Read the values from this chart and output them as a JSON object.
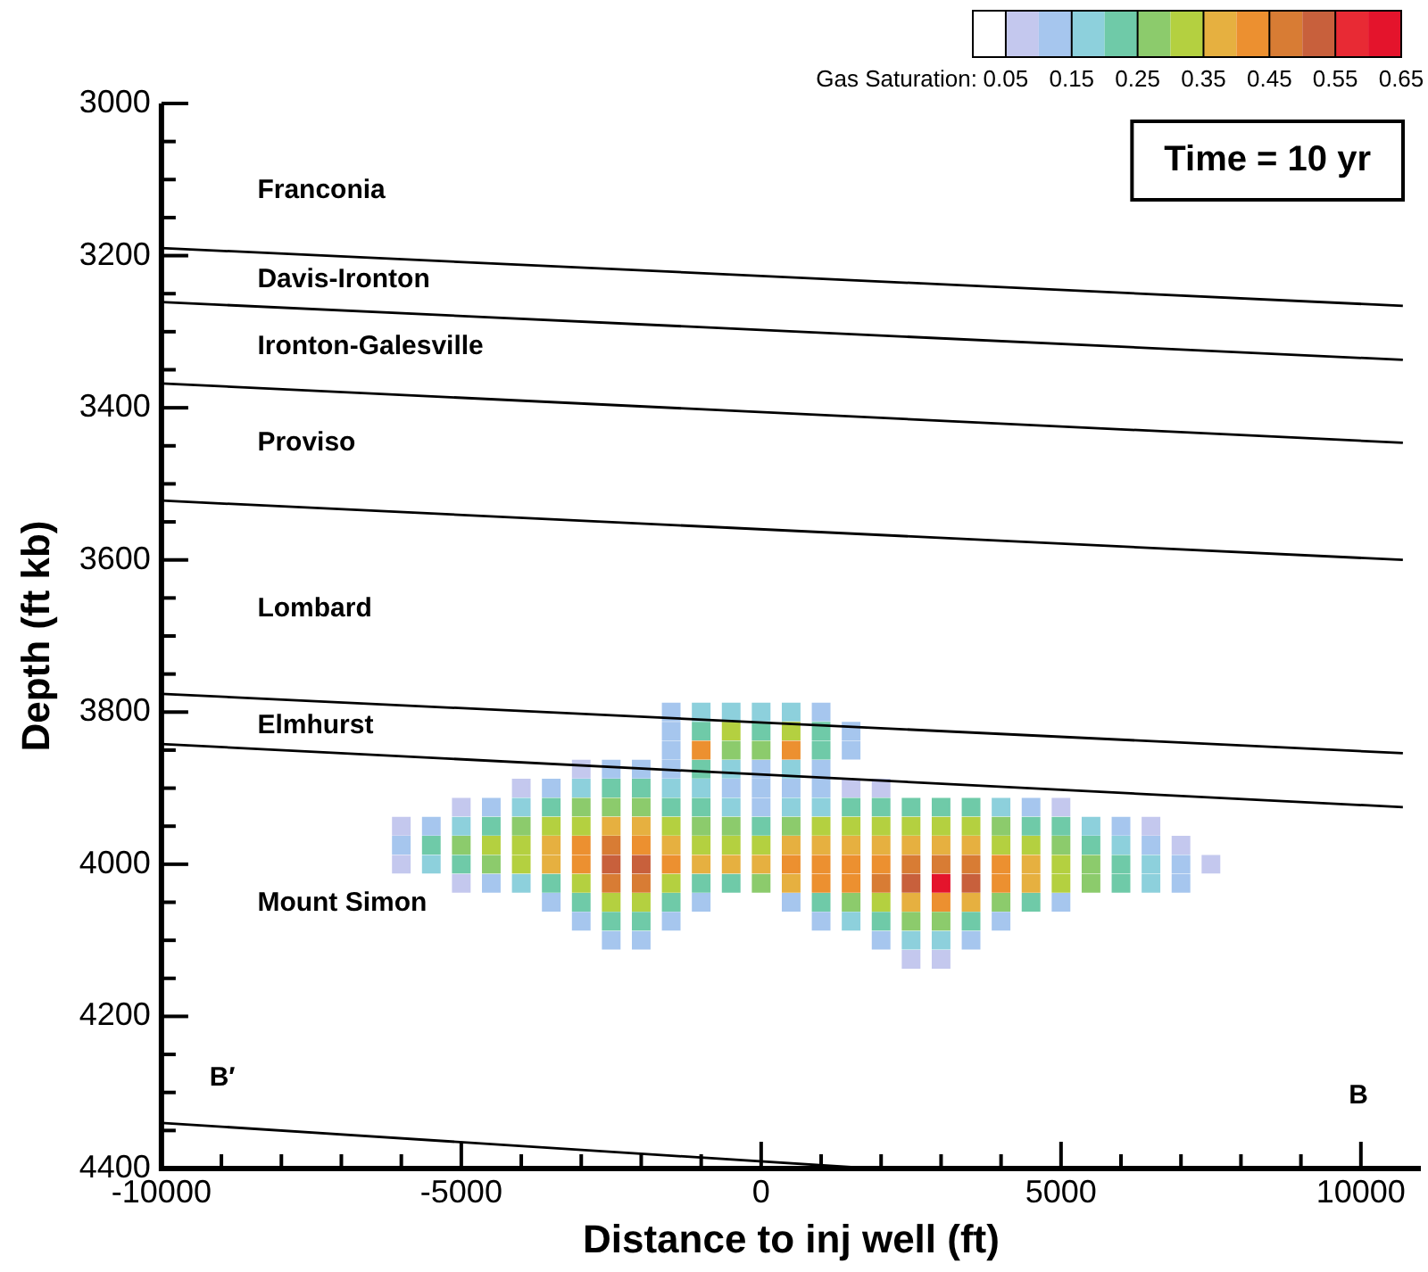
{
  "chart_data": {
    "type": "scatter",
    "xlabel": "Distance to inj well (ft)",
    "ylabel": "Depth (ft kb)",
    "clabel": "Gas Saturation:",
    "clim": [
      0,
      0.65
    ],
    "cticks": [
      0.05,
      0.15,
      0.25,
      0.35,
      0.45,
      0.55,
      0.65
    ],
    "xlim": [
      -10000,
      11000
    ],
    "xticks": [
      -10000,
      {
        "value": -9000,
        "label": null
      },
      {
        "value": -8000,
        "label": null
      },
      {
        "value": -7000,
        "label": null
      },
      {
        "value": -6000,
        "label": null
      },
      -5000,
      {
        "value": -4000,
        "label": null
      },
      {
        "value": -3000,
        "label": null
      },
      {
        "value": -2000,
        "label": null
      },
      {
        "value": -1000,
        "label": null
      },
      0,
      {
        "value": 1000,
        "label": null
      },
      {
        "value": 2000,
        "label": null
      },
      {
        "value": 3000,
        "label": null
      },
      {
        "value": 4000,
        "label": null
      },
      5000,
      {
        "value": 6000,
        "label": null
      },
      {
        "value": 7000,
        "label": null
      },
      {
        "value": 8000,
        "label": null
      },
      {
        "value": 9000,
        "label": null
      },
      10000
    ],
    "ylim": [
      4400,
      3000
    ],
    "yticks": [
      3000,
      {
        "value": 3050,
        "label": null
      },
      {
        "value": 3100,
        "label": null
      },
      {
        "value": 3150,
        "label": null
      },
      3200,
      {
        "value": 3250,
        "label": null
      },
      {
        "value": 3300,
        "label": null
      },
      {
        "value": 3350,
        "label": null
      },
      3400,
      {
        "value": 3450,
        "label": null
      },
      {
        "value": 3500,
        "label": null
      },
      {
        "value": 3550,
        "label": null
      },
      3600,
      {
        "value": 3650,
        "label": null
      },
      {
        "value": 3700,
        "label": null
      },
      {
        "value": 3750,
        "label": null
      },
      3800,
      {
        "value": 3850,
        "label": null
      },
      {
        "value": 3900,
        "label": null
      },
      {
        "value": 3950,
        "label": null
      },
      4000,
      {
        "value": 4050,
        "label": null
      },
      {
        "value": 4100,
        "label": null
      },
      {
        "value": 4150,
        "label": null
      },
      4200,
      {
        "value": 4250,
        "label": null
      },
      {
        "value": 4300,
        "label": null
      },
      {
        "value": 4350,
        "label": null
      },
      4400
    ],
    "grid": false,
    "legend": false,
    "series": [
      {
        "marker": "square",
        "x": [
          -1500,
          -1000,
          -500,
          0,
          500,
          1000
        ],
        "values": [
          3800,
          3800,
          3800,
          3800,
          3800,
          3800
        ],
        "cvalues": [
          0.1,
          0.15,
          0.15,
          0.15,
          0.15,
          0.1
        ],
        "colors": [
          "#a6c6ee",
          "#8dd0dc",
          "#8dd0dc",
          "#8dd0dc",
          "#8dd0dc",
          "#a6c6ee"
        ]
      },
      {
        "marker": "square",
        "x": [
          -1500,
          -1000,
          -500,
          0,
          500,
          1000,
          1500
        ],
        "values": [
          3825,
          3825,
          3825,
          3825,
          3825,
          3825,
          3825
        ],
        "cvalues": [
          0.1,
          0.2,
          0.3,
          0.2,
          0.3,
          0.2,
          0.1
        ],
        "colors": [
          "#a6c6ee",
          "#6fcaa8",
          "#b4d040",
          "#6fcaa8",
          "#b4d040",
          "#6fcaa8",
          "#a6c6ee"
        ]
      },
      {
        "marker": "square",
        "x": [
          -1500,
          -1000,
          -500,
          0,
          500,
          1000,
          1500
        ],
        "values": [
          3850,
          3850,
          3850,
          3850,
          3850,
          3850,
          3850
        ],
        "cvalues": [
          0.1,
          0.4,
          0.25,
          0.25,
          0.4,
          0.2,
          0.1
        ],
        "colors": [
          "#a6c6ee",
          "#ec9030",
          "#8ccb6c",
          "#8ccb6c",
          "#ec9030",
          "#6fcaa8",
          "#a6c6ee"
        ]
      },
      {
        "marker": "square",
        "x": [
          -3000,
          -2500,
          -2000,
          -1500,
          -1000,
          -500,
          0,
          500,
          1000
        ],
        "values": [
          3875,
          3875,
          3875,
          3875,
          3875,
          3875,
          3875,
          3875,
          3875
        ],
        "cvalues": [
          0.05,
          0.1,
          0.1,
          0.1,
          0.2,
          0.15,
          0.1,
          0.15,
          0.1
        ],
        "colors": [
          "#c4c8ee",
          "#a6c6ee",
          "#a6c6ee",
          "#a6c6ee",
          "#6fcaa8",
          "#8dd0dc",
          "#a6c6ee",
          "#8dd0dc",
          "#a6c6ee"
        ]
      },
      {
        "marker": "square",
        "x": [
          -4000,
          -3500,
          -3000,
          -2500,
          -2000,
          -1500,
          -1000,
          -500,
          0,
          500,
          1000,
          1500,
          2000
        ],
        "values": [
          3900,
          3900,
          3900,
          3900,
          3900,
          3900,
          3900,
          3900,
          3900,
          3900,
          3900,
          3900,
          3900
        ],
        "cvalues": [
          0.05,
          0.1,
          0.15,
          0.2,
          0.2,
          0.15,
          0.15,
          0.1,
          0.1,
          0.1,
          0.1,
          0.05,
          0.05
        ],
        "colors": [
          "#c4c8ee",
          "#a6c6ee",
          "#8dd0dc",
          "#6fcaa8",
          "#6fcaa8",
          "#8dd0dc",
          "#8dd0dc",
          "#a6c6ee",
          "#a6c6ee",
          "#a6c6ee",
          "#a6c6ee",
          "#c4c8ee",
          "#c4c8ee"
        ]
      },
      {
        "marker": "square",
        "x": [
          -5000,
          -4500,
          -4000,
          -3500,
          -3000,
          -2500,
          -2000,
          -1500,
          -1000,
          -500,
          0,
          500,
          1000,
          1500,
          2000,
          2500,
          3000,
          3500,
          4000,
          4500,
          5000
        ],
        "values": [
          3925,
          3925,
          3925,
          3925,
          3925,
          3925,
          3925,
          3925,
          3925,
          3925,
          3925,
          3925,
          3925,
          3925,
          3925,
          3925,
          3925,
          3925,
          3925,
          3925,
          3925
        ],
        "cvalues": [
          0.05,
          0.1,
          0.15,
          0.2,
          0.25,
          0.25,
          0.25,
          0.2,
          0.2,
          0.15,
          0.1,
          0.15,
          0.15,
          0.2,
          0.2,
          0.2,
          0.2,
          0.2,
          0.15,
          0.1,
          0.05
        ],
        "colors": [
          "#c4c8ee",
          "#a6c6ee",
          "#8dd0dc",
          "#6fcaa8",
          "#8ccb6c",
          "#8ccb6c",
          "#8ccb6c",
          "#6fcaa8",
          "#6fcaa8",
          "#8dd0dc",
          "#a6c6ee",
          "#8dd0dc",
          "#8dd0dc",
          "#6fcaa8",
          "#6fcaa8",
          "#6fcaa8",
          "#6fcaa8",
          "#6fcaa8",
          "#8dd0dc",
          "#a6c6ee",
          "#c4c8ee"
        ]
      },
      {
        "marker": "square",
        "x": [
          -6000,
          -5500,
          -5000,
          -4500,
          -4000,
          -3500,
          -3000,
          -2500,
          -2000,
          -1500,
          -1000,
          -500,
          0,
          500,
          1000,
          1500,
          2000,
          2500,
          3000,
          3500,
          4000,
          4500,
          5000,
          5500,
          6000,
          6500
        ],
        "values": [
          3950,
          3950,
          3950,
          3950,
          3950,
          3950,
          3950,
          3950,
          3950,
          3950,
          3950,
          3950,
          3950,
          3950,
          3950,
          3950,
          3950,
          3950,
          3950,
          3950,
          3950,
          3950,
          3950,
          3950,
          3950,
          3950
        ],
        "cvalues": [
          0.05,
          0.1,
          0.15,
          0.2,
          0.25,
          0.3,
          0.3,
          0.35,
          0.35,
          0.3,
          0.25,
          0.25,
          0.2,
          0.25,
          0.3,
          0.3,
          0.3,
          0.3,
          0.3,
          0.3,
          0.25,
          0.2,
          0.2,
          0.15,
          0.1,
          0.05
        ],
        "colors": [
          "#c4c8ee",
          "#a6c6ee",
          "#8dd0dc",
          "#6fcaa8",
          "#8ccb6c",
          "#b4d040",
          "#b4d040",
          "#e6b040",
          "#e6b040",
          "#b4d040",
          "#8ccb6c",
          "#8ccb6c",
          "#6fcaa8",
          "#8ccb6c",
          "#b4d040",
          "#b4d040",
          "#b4d040",
          "#b4d040",
          "#b4d040",
          "#b4d040",
          "#8ccb6c",
          "#6fcaa8",
          "#6fcaa8",
          "#8dd0dc",
          "#a6c6ee",
          "#c4c8ee"
        ]
      },
      {
        "marker": "square",
        "x": [
          -6000,
          -5500,
          -5000,
          -4500,
          -4000,
          -3500,
          -3000,
          -2500,
          -2000,
          -1500,
          -1000,
          -500,
          0,
          500,
          1000,
          1500,
          2000,
          2500,
          3000,
          3500,
          4000,
          4500,
          5000,
          5500,
          6000,
          6500,
          7000
        ],
        "values": [
          3975,
          3975,
          3975,
          3975,
          3975,
          3975,
          3975,
          3975,
          3975,
          3975,
          3975,
          3975,
          3975,
          3975,
          3975,
          3975,
          3975,
          3975,
          3975,
          3975,
          3975,
          3975,
          3975,
          3975,
          3975,
          3975,
          3975
        ],
        "cvalues": [
          0.1,
          0.2,
          0.25,
          0.3,
          0.3,
          0.35,
          0.4,
          0.45,
          0.4,
          0.35,
          0.3,
          0.3,
          0.3,
          0.35,
          0.35,
          0.35,
          0.35,
          0.35,
          0.35,
          0.35,
          0.3,
          0.3,
          0.25,
          0.2,
          0.15,
          0.1,
          0.05
        ],
        "colors": [
          "#a6c6ee",
          "#6fcaa8",
          "#8ccb6c",
          "#b4d040",
          "#b4d040",
          "#e6b040",
          "#ec9030",
          "#d87c34",
          "#ec9030",
          "#e6b040",
          "#b4d040",
          "#b4d040",
          "#b4d040",
          "#e6b040",
          "#e6b040",
          "#e6b040",
          "#e6b040",
          "#e6b040",
          "#e6b040",
          "#e6b040",
          "#b4d040",
          "#b4d040",
          "#8ccb6c",
          "#6fcaa8",
          "#8dd0dc",
          "#a6c6ee",
          "#c4c8ee"
        ]
      },
      {
        "marker": "square",
        "x": [
          -6000,
          -5500,
          -5000,
          -4500,
          -4000,
          -3500,
          -3000,
          -2500,
          -2000,
          -1500,
          -1000,
          -500,
          0,
          500,
          1000,
          1500,
          2000,
          2500,
          3000,
          3500,
          4000,
          4500,
          5000,
          5500,
          6000,
          6500,
          7000,
          7500
        ],
        "values": [
          4000,
          4000,
          4000,
          4000,
          4000,
          4000,
          4000,
          4000,
          4000,
          4000,
          4000,
          4000,
          4000,
          4000,
          4000,
          4000,
          4000,
          4000,
          4000,
          4000,
          4000,
          4000,
          4000,
          4000,
          4000,
          4000,
          4000,
          4000
        ],
        "cvalues": [
          0.05,
          0.15,
          0.2,
          0.25,
          0.3,
          0.35,
          0.4,
          0.5,
          0.5,
          0.4,
          0.35,
          0.35,
          0.35,
          0.4,
          0.4,
          0.4,
          0.4,
          0.45,
          0.45,
          0.45,
          0.4,
          0.35,
          0.3,
          0.25,
          0.2,
          0.15,
          0.1,
          0.05
        ],
        "colors": [
          "#c4c8ee",
          "#8dd0dc",
          "#6fcaa8",
          "#8ccb6c",
          "#b4d040",
          "#e6b040",
          "#ec9030",
          "#c8603c",
          "#c8603c",
          "#ec9030",
          "#e6b040",
          "#e6b040",
          "#e6b040",
          "#ec9030",
          "#ec9030",
          "#ec9030",
          "#ec9030",
          "#d87c34",
          "#d87c34",
          "#d87c34",
          "#ec9030",
          "#e6b040",
          "#b4d040",
          "#8ccb6c",
          "#6fcaa8",
          "#8dd0dc",
          "#a6c6ee",
          "#c4c8ee"
        ]
      },
      {
        "marker": "square",
        "x": [
          -5000,
          -4500,
          -4000,
          -3500,
          -3000,
          -2500,
          -2000,
          -1500,
          -1000,
          -500,
          0,
          500,
          1000,
          1500,
          2000,
          2500,
          3000,
          3500,
          4000,
          4500,
          5000,
          5500,
          6000,
          6500,
          7000
        ],
        "values": [
          4025,
          4025,
          4025,
          4025,
          4025,
          4025,
          4025,
          4025,
          4025,
          4025,
          4025,
          4025,
          4025,
          4025,
          4025,
          4025,
          4025,
          4025,
          4025,
          4025,
          4025,
          4025,
          4025,
          4025,
          4025
        ],
        "cvalues": [
          0.05,
          0.1,
          0.15,
          0.2,
          0.3,
          0.45,
          0.45,
          0.3,
          0.2,
          0.2,
          0.25,
          0.35,
          0.4,
          0.4,
          0.45,
          0.5,
          0.6,
          0.5,
          0.4,
          0.35,
          0.3,
          0.25,
          0.2,
          0.15,
          0.1
        ],
        "colors": [
          "#c4c8ee",
          "#a6c6ee",
          "#8dd0dc",
          "#6fcaa8",
          "#b4d040",
          "#d87c34",
          "#d87c34",
          "#b4d040",
          "#6fcaa8",
          "#6fcaa8",
          "#8ccb6c",
          "#e6b040",
          "#ec9030",
          "#ec9030",
          "#d87c34",
          "#c8603c",
          "#e4142c",
          "#c8603c",
          "#ec9030",
          "#e6b040",
          "#b4d040",
          "#8ccb6c",
          "#6fcaa8",
          "#8dd0dc",
          "#a6c6ee"
        ]
      },
      {
        "marker": "square",
        "x": [
          -3500,
          -3000,
          -2500,
          -2000,
          -1500,
          -1000,
          500,
          1000,
          1500,
          2000,
          2500,
          3000,
          3500,
          4000,
          4500,
          5000
        ],
        "values": [
          4050,
          4050,
          4050,
          4050,
          4050,
          4050,
          4050,
          4050,
          4050,
          4050,
          4050,
          4050,
          4050,
          4050,
          4050,
          4050
        ],
        "cvalues": [
          0.1,
          0.2,
          0.3,
          0.3,
          0.2,
          0.1,
          0.1,
          0.2,
          0.25,
          0.3,
          0.35,
          0.4,
          0.35,
          0.25,
          0.2,
          0.1
        ],
        "colors": [
          "#a6c6ee",
          "#6fcaa8",
          "#b4d040",
          "#b4d040",
          "#6fcaa8",
          "#a6c6ee",
          "#a6c6ee",
          "#6fcaa8",
          "#8ccb6c",
          "#b4d040",
          "#e6b040",
          "#ec9030",
          "#e6b040",
          "#8ccb6c",
          "#6fcaa8",
          "#a6c6ee"
        ]
      },
      {
        "marker": "square",
        "x": [
          -3000,
          -2500,
          -2000,
          -1500,
          1000,
          1500,
          2000,
          2500,
          3000,
          3500,
          4000
        ],
        "values": [
          4075,
          4075,
          4075,
          4075,
          4075,
          4075,
          4075,
          4075,
          4075,
          4075,
          4075
        ],
        "cvalues": [
          0.1,
          0.2,
          0.2,
          0.1,
          0.1,
          0.15,
          0.2,
          0.25,
          0.25,
          0.2,
          0.1
        ],
        "colors": [
          "#a6c6ee",
          "#6fcaa8",
          "#6fcaa8",
          "#a6c6ee",
          "#a6c6ee",
          "#8dd0dc",
          "#6fcaa8",
          "#8ccb6c",
          "#8ccb6c",
          "#6fcaa8",
          "#a6c6ee"
        ]
      },
      {
        "marker": "square",
        "x": [
          -2500,
          -2000,
          2000,
          2500,
          3000,
          3500
        ],
        "values": [
          4100,
          4100,
          4100,
          4100,
          4100,
          4100
        ],
        "cvalues": [
          0.1,
          0.1,
          0.1,
          0.15,
          0.15,
          0.1
        ],
        "colors": [
          "#a6c6ee",
          "#a6c6ee",
          "#a6c6ee",
          "#8dd0dc",
          "#8dd0dc",
          "#a6c6ee"
        ]
      },
      {
        "marker": "square",
        "x": [
          2500,
          3000
        ],
        "values": [
          4125,
          4125
        ],
        "cvalues": [
          0.05,
          0.05
        ],
        "colors": [
          "#c4c8ee",
          "#c4c8ee"
        ]
      },
      {
        "type": "line",
        "x": [
          -10000,
          10700
        ],
        "values": [
          3190,
          3266
        ],
        "color": "#000000"
      },
      {
        "type": "line",
        "x": [
          -10000,
          10700
        ],
        "values": [
          3261,
          3337
        ],
        "color": "#000000"
      },
      {
        "type": "line",
        "x": [
          -10000,
          10700
        ],
        "values": [
          3368,
          3446
        ],
        "color": "#000000"
      },
      {
        "type": "line",
        "x": [
          -10000,
          10700
        ],
        "values": [
          3522,
          3600
        ],
        "color": "#000000"
      },
      {
        "type": "line",
        "x": [
          -10000,
          10700
        ],
        "values": [
          3776,
          3854
        ],
        "color": "#000000"
      },
      {
        "type": "line",
        "x": [
          -10000,
          10700
        ],
        "values": [
          3842,
          3925
        ],
        "color": "#000000"
      },
      {
        "type": "line",
        "x": [
          -10000,
          1850
        ],
        "values": [
          4340,
          4400
        ],
        "color": "#000000"
      }
    ],
    "annotations": [
      "Time = 10 yr",
      "Franconia",
      "Davis-Ironton",
      "Ironton-Galesville",
      "Proviso",
      "Lombard",
      "Elmhurst",
      "Mount Simon",
      "B′",
      "B"
    ]
  }
}
